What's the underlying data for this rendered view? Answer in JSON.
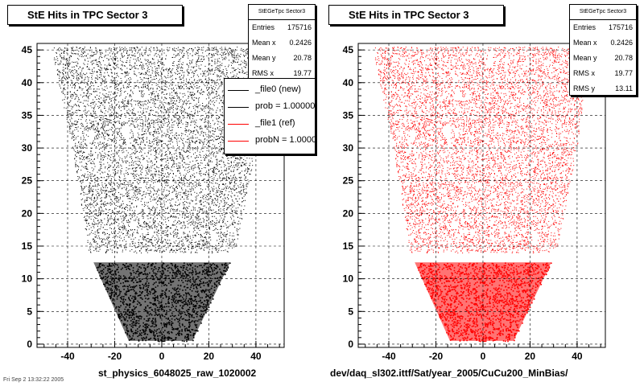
{
  "page": {
    "corner_text": "Fri Sep 2 13:32:22 2005"
  },
  "chart_data": [
    {
      "type": "scatter",
      "title": "StE Hits in TPC Sector 3",
      "xlabel": "st_physics_6048025_raw_1020002",
      "ylabel": "",
      "xlim": [
        -53,
        52
      ],
      "ylim": [
        -0.5,
        46
      ],
      "xticks": [
        -40,
        -20,
        0,
        20,
        40
      ],
      "yticks": [
        0,
        5,
        10,
        15,
        20,
        25,
        30,
        35,
        40,
        45
      ],
      "grid": true,
      "marker_color": "#000000",
      "shape": {
        "outer_boundary": [
          [
            -47,
            45.5
          ],
          [
            45,
            45.5
          ],
          [
            40,
            30
          ],
          [
            31,
            14
          ],
          [
            -31,
            14
          ],
          [
            -38,
            30
          ]
        ],
        "inner_boundary": [
          [
            -29,
            12.5
          ],
          [
            29,
            12.5
          ],
          [
            13,
            0.5
          ],
          [
            -14,
            0.5
          ]
        ],
        "gap_y": [
          12.5,
          13.5
        ]
      },
      "stats": {
        "header": "StEGeTpc Sector3",
        "rows": [
          {
            "label": "Entries",
            "value": "175716"
          },
          {
            "label": "Mean x",
            "value": "0.2426"
          },
          {
            "label": "Mean y",
            "value": "20.78"
          },
          {
            "label": "RMS x",
            "value": "19.77"
          }
        ]
      },
      "legend": {
        "position": "top-right",
        "entries": [
          {
            "label": "_file0 (new)",
            "color": "#000000"
          },
          {
            "label": "prob = 1.000000",
            "color": "#000000"
          },
          {
            "label": "_file1 (ref)",
            "color": "#ff0000"
          },
          {
            "label": "probN = 1.000000",
            "color": "#ff0000"
          }
        ]
      }
    },
    {
      "type": "scatter",
      "title": "StE Hits in TPC Sector 3",
      "xlabel": "dev/daq_sl302.ittf/Sat/year_2005/CuCu200_MinBias/",
      "ylabel": "",
      "xlim": [
        -53,
        52
      ],
      "ylim": [
        -0.5,
        46
      ],
      "xticks": [
        -40,
        -20,
        0,
        20,
        40
      ],
      "yticks": [
        0,
        5,
        10,
        15,
        20,
        25,
        30,
        35,
        40,
        45
      ],
      "grid": true,
      "marker_color": "#ff0000",
      "shape": {
        "outer_boundary": [
          [
            -47,
            45.5
          ],
          [
            45,
            45.5
          ],
          [
            40,
            30
          ],
          [
            31,
            14
          ],
          [
            -31,
            14
          ],
          [
            -38,
            30
          ]
        ],
        "inner_boundary": [
          [
            -29,
            12.5
          ],
          [
            29,
            12.5
          ],
          [
            13,
            0.5
          ],
          [
            -14,
            0.5
          ]
        ],
        "gap_y": [
          12.5,
          13.5
        ]
      },
      "stats": {
        "header": "StEGeTpc Sector3",
        "rows": [
          {
            "label": "Entries",
            "value": "175716"
          },
          {
            "label": "Mean x",
            "value": "0.2426"
          },
          {
            "label": "Mean y",
            "value": "20.78"
          },
          {
            "label": "RMS x",
            "value": "19.77"
          },
          {
            "label": "RMS y",
            "value": "13.11"
          }
        ]
      }
    }
  ]
}
